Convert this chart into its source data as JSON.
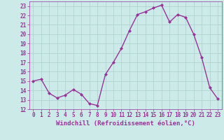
{
  "x": [
    0,
    1,
    2,
    3,
    4,
    5,
    6,
    7,
    8,
    9,
    10,
    11,
    12,
    13,
    14,
    15,
    16,
    17,
    18,
    19,
    20,
    21,
    22,
    23
  ],
  "y": [
    15,
    15.2,
    13.7,
    13.2,
    13.5,
    14.1,
    13.6,
    12.6,
    12.4,
    15.7,
    17.0,
    18.5,
    20.4,
    22.1,
    22.4,
    22.8,
    23.1,
    21.3,
    22.1,
    21.8,
    20.0,
    17.5,
    14.3,
    13.1
  ],
  "line_color": "#993399",
  "marker": "D",
  "marker_size": 2,
  "linewidth": 1.0,
  "xlabel": "Windchill (Refroidissement éolien,°C)",
  "xlabel_fontsize": 6.5,
  "ylim": [
    12,
    23.5
  ],
  "xlim": [
    -0.5,
    23.5
  ],
  "yticks": [
    12,
    13,
    14,
    15,
    16,
    17,
    18,
    19,
    20,
    21,
    22,
    23
  ],
  "xticks": [
    0,
    1,
    2,
    3,
    4,
    5,
    6,
    7,
    8,
    9,
    10,
    11,
    12,
    13,
    14,
    15,
    16,
    17,
    18,
    19,
    20,
    21,
    22,
    23
  ],
  "bg_color": "#cceae8",
  "grid_color": "#aad0ce",
  "tick_color": "#993399",
  "tick_fontsize": 5.5,
  "xlabel_color": "#993399"
}
